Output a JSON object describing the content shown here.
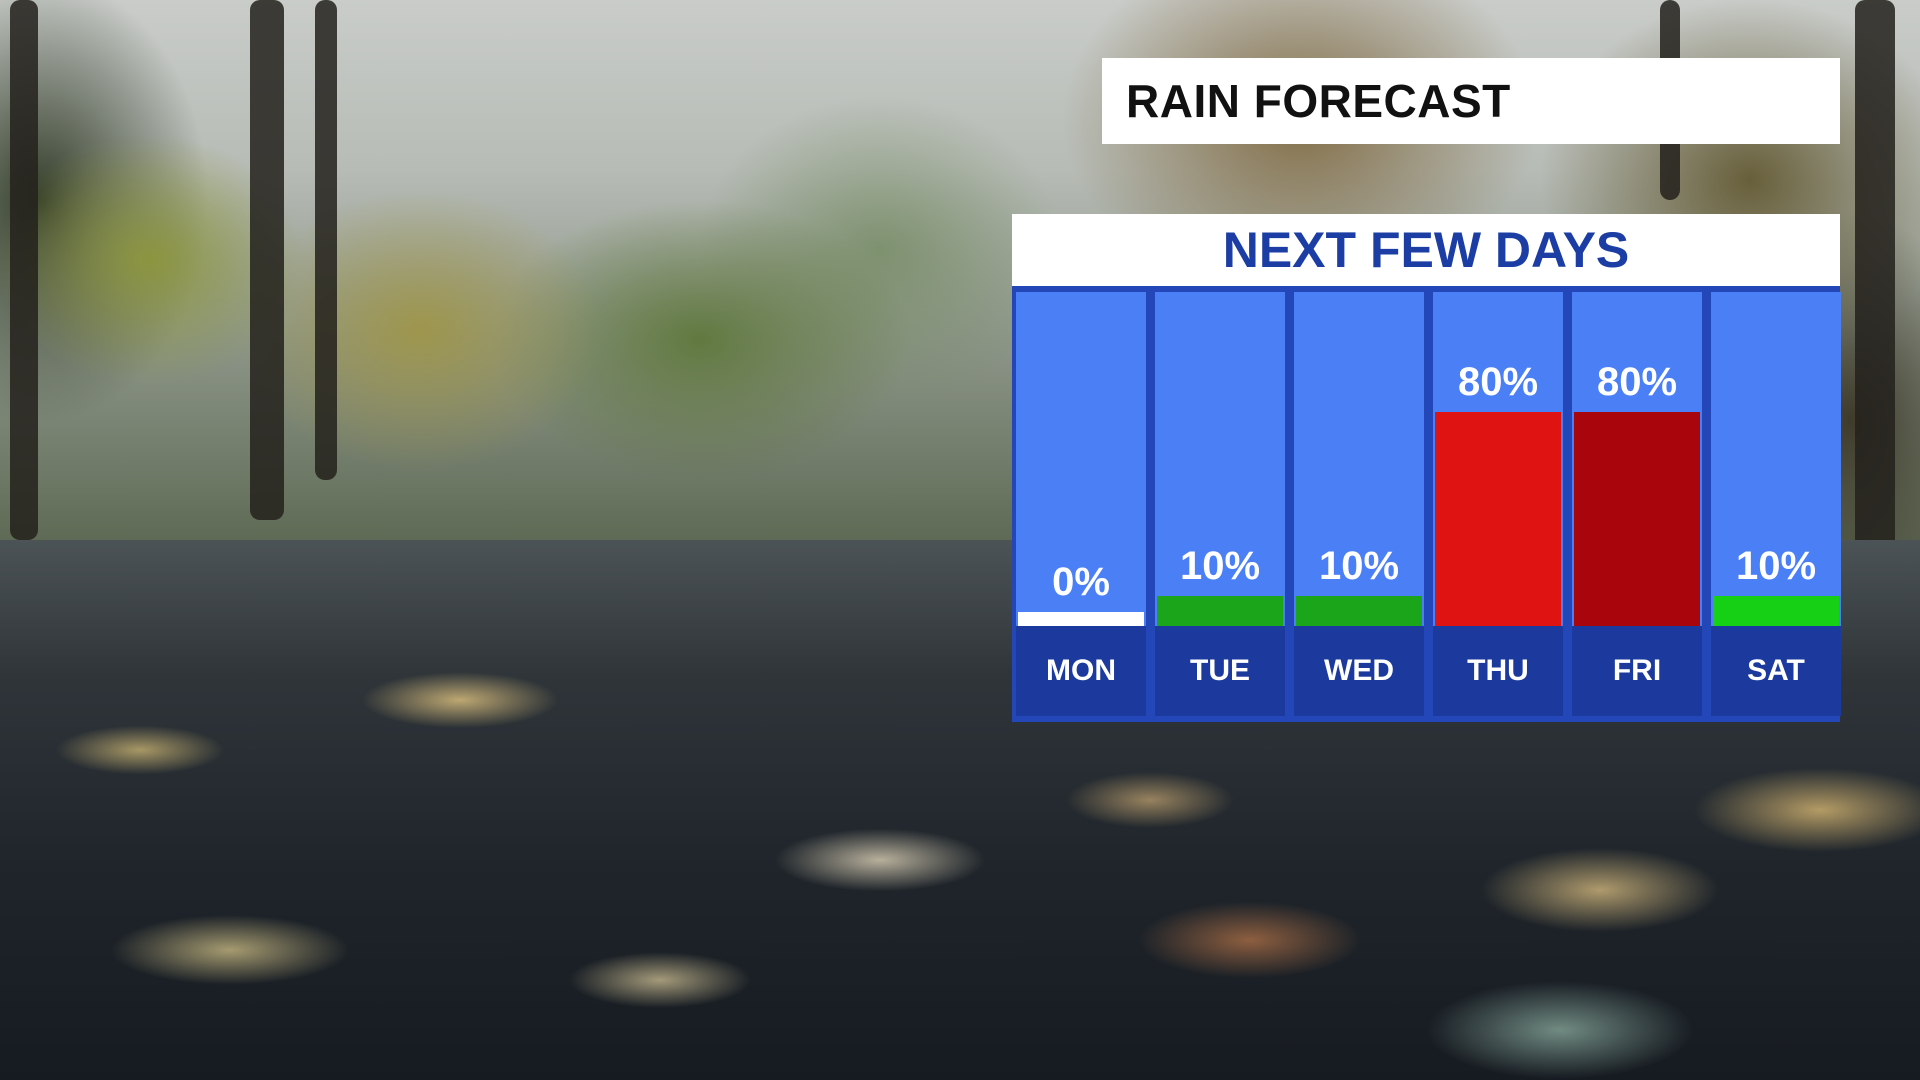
{
  "header": {
    "title": "RAIN FORECAST"
  },
  "panel": {
    "subtitle": "NEXT FEW DAYS"
  },
  "chart_data": {
    "type": "bar",
    "title": "NEXT FEW DAYS",
    "categories": [
      "MON",
      "TUE",
      "WED",
      "THU",
      "FRI",
      "SAT"
    ],
    "values": [
      0,
      10,
      10,
      80,
      80,
      10
    ],
    "value_labels": [
      "0%",
      "10%",
      "10%",
      "80%",
      "80%",
      "10%"
    ],
    "bar_colors": [
      "#ffffff",
      "#1aa51a",
      "#1aa51a",
      "#e01313",
      "#a8060c",
      "#16d016"
    ],
    "ylim": [
      0,
      100
    ],
    "xlabel": "",
    "ylabel": "",
    "grid": false
  }
}
